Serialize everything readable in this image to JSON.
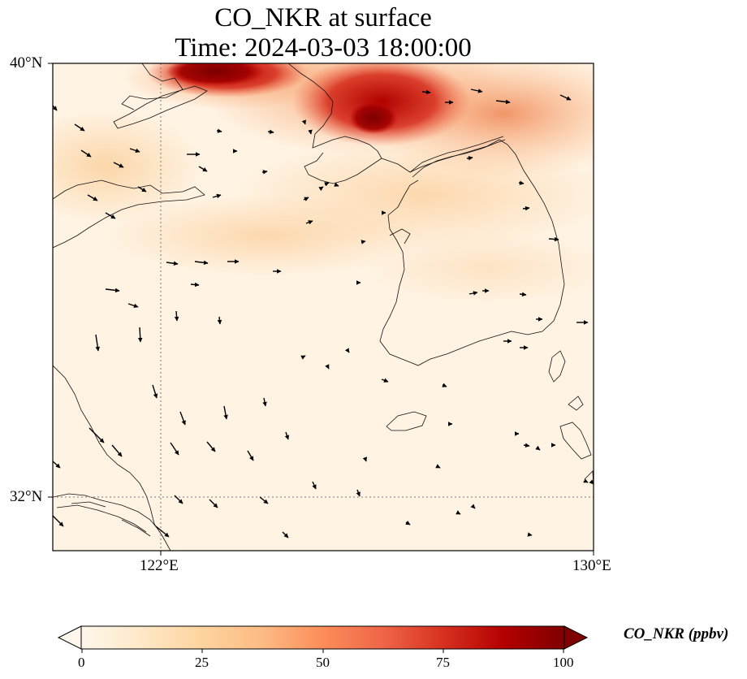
{
  "title": {
    "line1": "CO_NKR at surface",
    "line2": "Time: 2024-03-03 18:00:00"
  },
  "axes": {
    "lat_labels": [
      "40°N",
      "32°N"
    ],
    "lon_labels": [
      "122°E",
      "130°E"
    ]
  },
  "colorbar": {
    "label": "CO_NKR (ppbv)",
    "ticks": [
      "0",
      "25",
      "50",
      "75",
      "100"
    ],
    "range": [
      0,
      100
    ],
    "extend": "both",
    "colormap": "OrRd",
    "stops": [
      "#fff7ec",
      "#fee8c8",
      "#fdd49e",
      "#fdbb84",
      "#fc8d59",
      "#ef6548",
      "#d7301f",
      "#b30000",
      "#7f0000"
    ]
  },
  "map": {
    "extent": {
      "lon": [
        120,
        130
      ],
      "lat": [
        31,
        40
      ]
    },
    "gridlines": "dotted",
    "field": "CO_NKR concentration with wind vectors"
  }
}
